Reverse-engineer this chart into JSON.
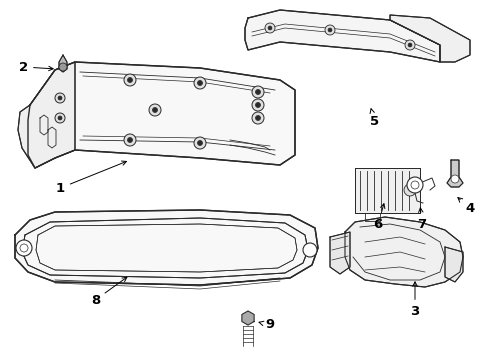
{
  "bg_color": "#ffffff",
  "line_color": "#2a2a2a",
  "label_color": "#000000",
  "fontsize": 9.5,
  "figsize": [
    4.89,
    3.6
  ],
  "dpi": 100
}
